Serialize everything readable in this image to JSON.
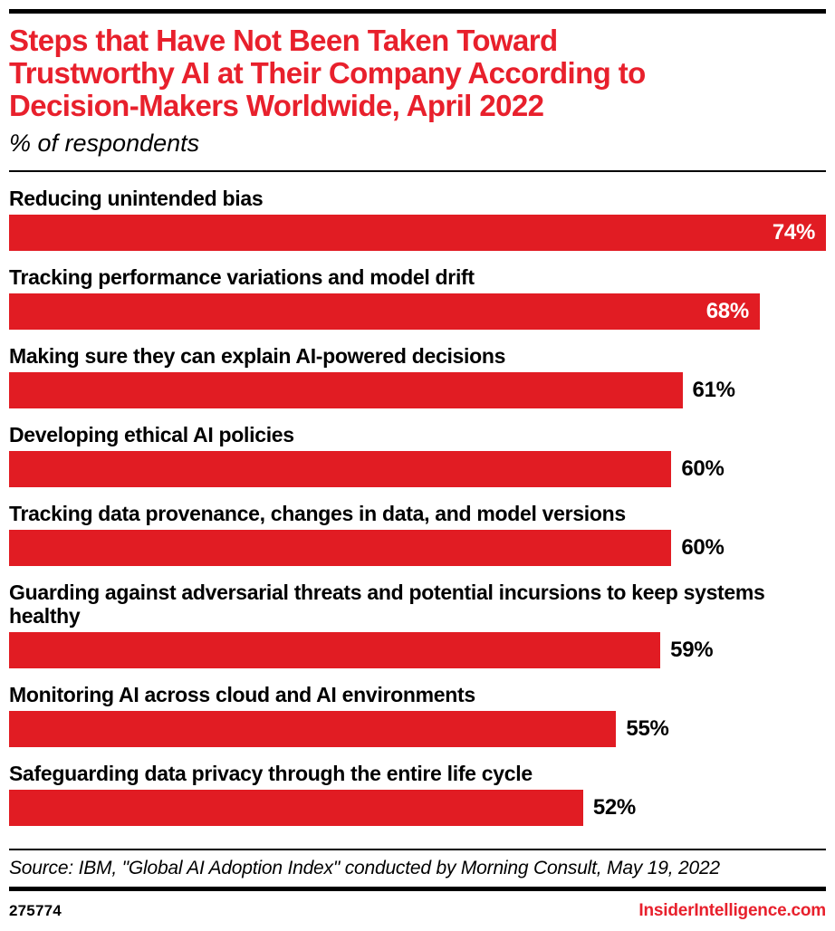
{
  "header": {
    "title_lines": [
      "Steps that Have Not Been Taken Toward",
      "Trustworthy AI at Their Company According to",
      "Decision-Makers Worldwide, April 2022"
    ],
    "subtitle": "% of respondents"
  },
  "chart_data": {
    "type": "bar",
    "orientation": "horizontal",
    "title": "Steps that Have Not Been Taken Toward Trustworthy AI at Their Company According to Decision-Makers Worldwide, April 2022",
    "subtitle": "% of respondents",
    "unit": "%",
    "xlabel": "",
    "ylabel": "",
    "grid": false,
    "legend": false,
    "axis_max": 74,
    "categories": [
      "Reducing unintended bias",
      "Tracking performance variations and model drift",
      "Making sure they can explain AI-powered decisions",
      "Developing ethical AI policies",
      "Tracking data provenance, changes in data, and model versions",
      "Guarding against adversarial threats and potential incursions to keep systems healthy",
      "Monitoring AI across cloud and AI environments",
      "Safeguarding data privacy through the entire life cycle"
    ],
    "values": [
      74,
      68,
      61,
      60,
      60,
      59,
      55,
      52
    ],
    "value_labels": [
      "74%",
      "68%",
      "61%",
      "60%",
      "60%",
      "59%",
      "55%",
      "52%"
    ],
    "value_label_positions": [
      "inside",
      "inside",
      "outside",
      "outside",
      "outside",
      "outside",
      "outside",
      "outside"
    ]
  },
  "footer": {
    "source": "Source: IBM, \"Global AI Adoption Index\" conducted by Morning Consult, May 19, 2022",
    "chart_id": "275774",
    "brand": "InsiderIntelligence.com"
  },
  "colors": {
    "bar_red": "#e11c23",
    "title_red": "#e8202c",
    "text_black": "#000000",
    "page_bg": "#ffffff"
  }
}
